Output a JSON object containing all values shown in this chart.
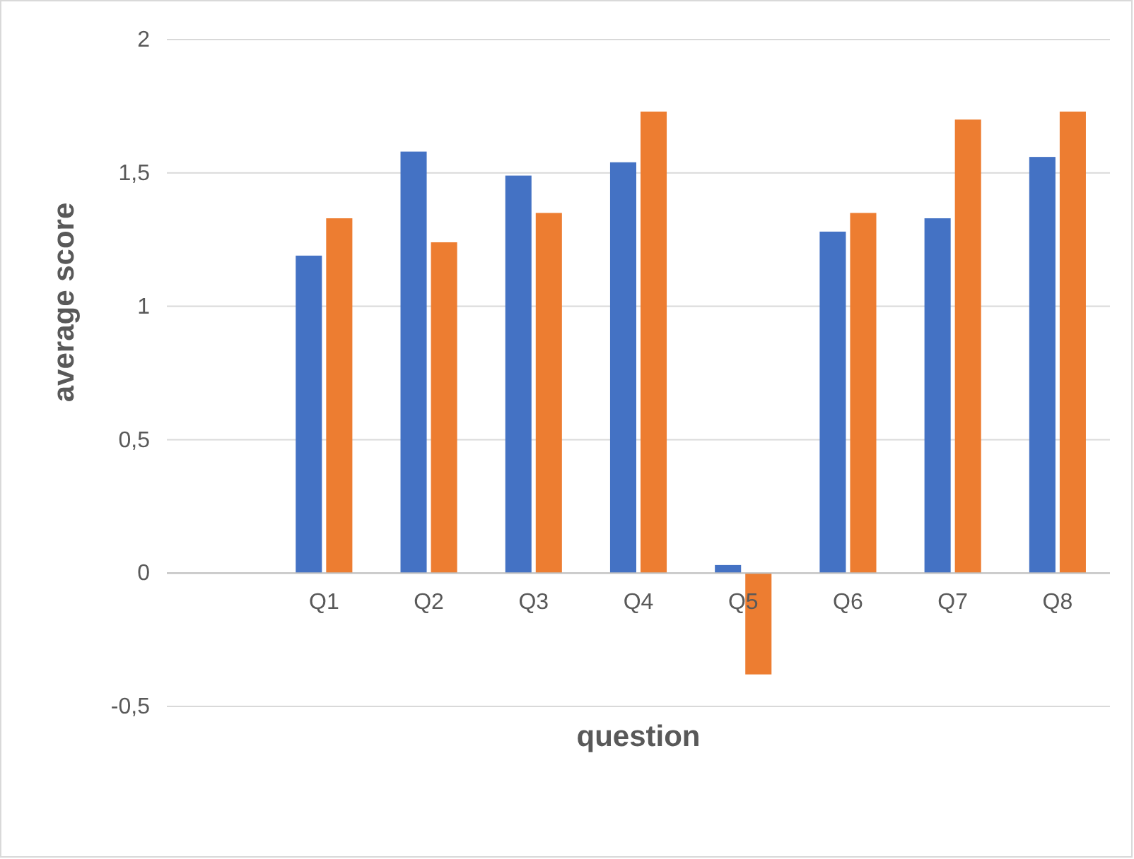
{
  "chart_data": {
    "type": "bar",
    "xlabel": "question",
    "ylabel": "average score",
    "categories": [
      null,
      "Q1",
      "Q2",
      "Q3",
      "Q4",
      "Q5",
      "Q6",
      "Q7",
      "Q8"
    ],
    "series": [
      {
        "color": "#4472c4",
        "values": [
          null,
          1.19,
          1.58,
          1.49,
          1.54,
          0.03,
          1.28,
          1.33,
          1.56
        ]
      },
      {
        "color": "#ed7d31",
        "values": [
          null,
          1.33,
          1.24,
          1.35,
          1.73,
          -0.38,
          1.35,
          1.7,
          1.73
        ]
      }
    ],
    "ylim": [
      -0.5,
      2
    ],
    "yticks": [
      {
        "value": -0.5,
        "label": "-0,5"
      },
      0,
      {
        "value": 0.5,
        "label": "0,5"
      },
      1,
      {
        "value": 1.5,
        "label": "1,5"
      },
      2
    ],
    "grid": "y"
  }
}
